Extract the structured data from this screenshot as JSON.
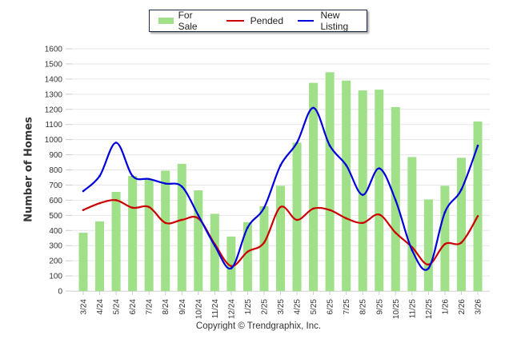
{
  "chart_data": {
    "type": "bar",
    "title": "",
    "xlabel": "",
    "ylabel": "Number of Homes",
    "ylim": [
      0,
      1600
    ],
    "yticks": [
      0,
      100,
      200,
      300,
      400,
      500,
      600,
      700,
      800,
      900,
      1000,
      1100,
      1200,
      1300,
      1400,
      1500,
      1600
    ],
    "grid": true,
    "legend_position": "top-center",
    "categories": [
      "3/24",
      "4/24",
      "5/24",
      "6/24",
      "7/24",
      "8/24",
      "9/24",
      "10/24",
      "11/24",
      "12/24",
      "1/25",
      "2/25",
      "3/25",
      "4/25",
      "5/25",
      "6/25",
      "7/25",
      "8/25",
      "9/25",
      "10/25",
      "11/25",
      "12/25",
      "1/26",
      "2/26",
      "3/26"
    ],
    "series": [
      {
        "name": "For Sale",
        "type": "bar",
        "color": "#a0e088",
        "values": [
          385,
          460,
          655,
          760,
          740,
          795,
          840,
          665,
          510,
          360,
          455,
          560,
          695,
          980,
          1375,
          1445,
          1390,
          1325,
          1330,
          1215,
          885,
          605,
          695,
          880,
          1120
        ]
      },
      {
        "name": "Pended",
        "type": "line",
        "color": "#cc0000",
        "values": [
          535,
          580,
          600,
          550,
          555,
          450,
          470,
          480,
          310,
          165,
          260,
          320,
          555,
          470,
          545,
          535,
          480,
          450,
          505,
          385,
          290,
          175,
          310,
          320,
          495
        ]
      },
      {
        "name": "New Listing",
        "type": "line",
        "color": "#0000dd",
        "values": [
          660,
          760,
          980,
          760,
          740,
          710,
          690,
          500,
          300,
          150,
          420,
          550,
          830,
          980,
          1210,
          960,
          830,
          635,
          810,
          600,
          270,
          150,
          520,
          670,
          960
        ]
      }
    ]
  },
  "legend": {
    "items": [
      {
        "label": "For Sale",
        "color": "#a0e088"
      },
      {
        "label": "Pended",
        "color": "#cc0000"
      },
      {
        "label": "New Listing",
        "color": "#0000dd"
      }
    ]
  },
  "footer": {
    "copyright": "Copyright © Trendgraphix, Inc."
  }
}
